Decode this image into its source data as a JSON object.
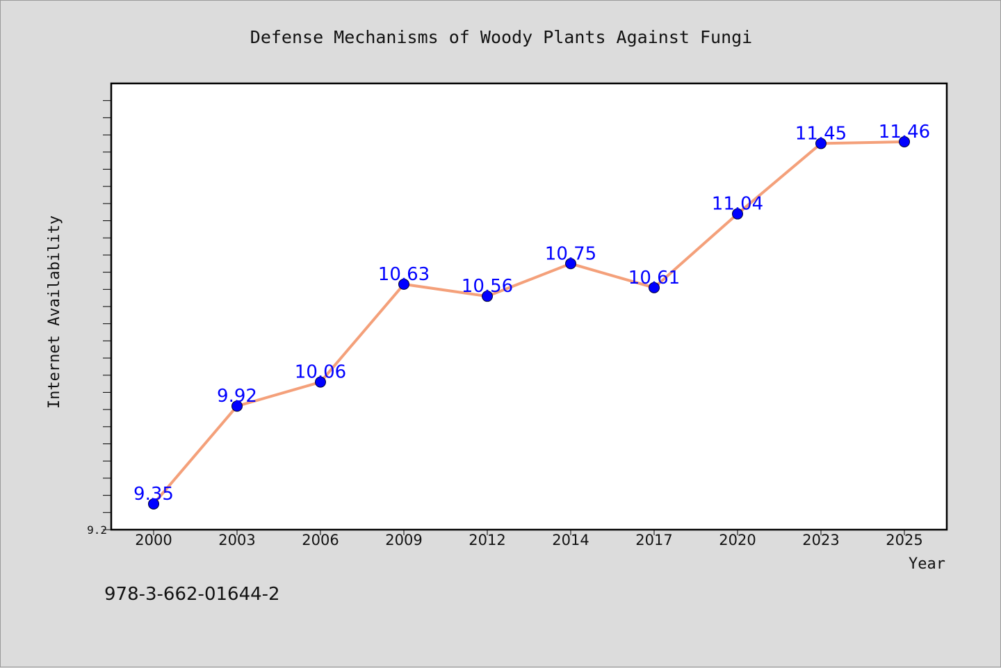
{
  "chart_data": {
    "type": "line",
    "title": "Defense Mechanisms of Woody Plants Against Fungi",
    "xlabel": "Year",
    "ylabel": "Internet Availability",
    "categories": [
      "2000",
      "2003",
      "2006",
      "2009",
      "2012",
      "2014",
      "2017",
      "2020",
      "2023",
      "2025"
    ],
    "series": [
      {
        "values": [
          9.35,
          9.92,
          10.06,
          10.63,
          10.56,
          10.75,
          10.61,
          11.04,
          11.45,
          11.46
        ],
        "labels": [
          "9.35",
          "9.92",
          "10.06",
          "10.63",
          "10.56",
          "10.75",
          "10.61",
          "11.04",
          "11.45",
          "11.46"
        ],
        "line_color": "#f4a07a",
        "marker_color": "#0000ff"
      }
    ],
    "ylim": [
      9.2,
      11.8
    ],
    "ytick_labels": [
      "9.2"
    ],
    "grid": false,
    "legend": "none"
  },
  "footer_text": "978-3-662-01644-2"
}
